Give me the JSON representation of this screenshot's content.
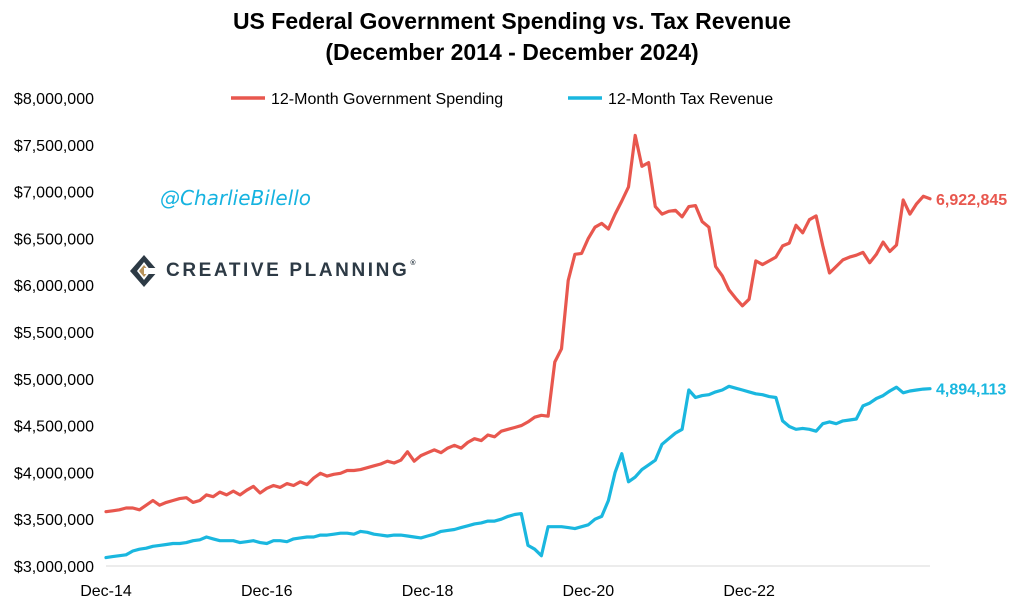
{
  "chart_data": {
    "type": "line",
    "title": "US Federal Government Spending vs. Tax Revenue",
    "subtitle": "(December 2014 - December 2024)",
    "xlabel": "",
    "ylabel": "",
    "x_start": "Dec-14",
    "x_end": "Dec-24",
    "x_ticks": [
      "Dec-14",
      "Dec-16",
      "Dec-18",
      "Dec-20",
      "Dec-22"
    ],
    "y_ticks": [
      "$3,000,000",
      "$3,500,000",
      "$4,000,000",
      "$4,500,000",
      "$5,000,000",
      "$5,500,000",
      "$6,000,000",
      "$6,500,000",
      "$7,000,000",
      "$7,500,000",
      "$8,000,000"
    ],
    "ylim": [
      3000000,
      8000000
    ],
    "grid": false,
    "legend_position": "top",
    "x_unit": "monthly",
    "series": [
      {
        "name": "12-Month Government Spending",
        "color": "#e8574e",
        "end_label": "6,922,845",
        "values": [
          3580000,
          3590000,
          3600000,
          3620000,
          3620000,
          3600000,
          3650000,
          3700000,
          3650000,
          3680000,
          3700000,
          3720000,
          3730000,
          3680000,
          3700000,
          3760000,
          3740000,
          3790000,
          3760000,
          3800000,
          3760000,
          3810000,
          3850000,
          3780000,
          3830000,
          3860000,
          3840000,
          3880000,
          3860000,
          3900000,
          3870000,
          3940000,
          3990000,
          3960000,
          3980000,
          3990000,
          4020000,
          4020000,
          4030000,
          4050000,
          4070000,
          4090000,
          4120000,
          4100000,
          4130000,
          4220000,
          4120000,
          4180000,
          4210000,
          4240000,
          4210000,
          4260000,
          4290000,
          4260000,
          4320000,
          4360000,
          4340000,
          4400000,
          4380000,
          4440000,
          4460000,
          4480000,
          4500000,
          4540000,
          4590000,
          4610000,
          4600000,
          5180000,
          5320000,
          6050000,
          6330000,
          6340000,
          6500000,
          6620000,
          6660000,
          6600000,
          6760000,
          6900000,
          7050000,
          7600000,
          7270000,
          7310000,
          6840000,
          6760000,
          6790000,
          6800000,
          6730000,
          6840000,
          6850000,
          6680000,
          6620000,
          6200000,
          6100000,
          5950000,
          5860000,
          5780000,
          5850000,
          6260000,
          6220000,
          6260000,
          6300000,
          6420000,
          6450000,
          6640000,
          6560000,
          6700000,
          6740000,
          6420000,
          6130000,
          6200000,
          6270000,
          6300000,
          6320000,
          6350000,
          6240000,
          6330000,
          6460000,
          6360000,
          6430000,
          6910000,
          6760000,
          6870000,
          6950000,
          6922845
        ]
      },
      {
        "name": "12-Month Tax Revenue",
        "color": "#1ab7df",
        "end_label": "4,894,113",
        "values": [
          3090000,
          3100000,
          3110000,
          3120000,
          3160000,
          3180000,
          3190000,
          3210000,
          3220000,
          3230000,
          3240000,
          3240000,
          3250000,
          3270000,
          3280000,
          3310000,
          3290000,
          3270000,
          3270000,
          3270000,
          3250000,
          3260000,
          3270000,
          3250000,
          3240000,
          3270000,
          3270000,
          3260000,
          3290000,
          3300000,
          3310000,
          3310000,
          3330000,
          3330000,
          3340000,
          3350000,
          3350000,
          3340000,
          3370000,
          3360000,
          3340000,
          3330000,
          3320000,
          3330000,
          3330000,
          3320000,
          3310000,
          3300000,
          3320000,
          3340000,
          3370000,
          3380000,
          3390000,
          3410000,
          3430000,
          3450000,
          3460000,
          3480000,
          3480000,
          3500000,
          3530000,
          3550000,
          3560000,
          3220000,
          3180000,
          3110000,
          3420000,
          3420000,
          3420000,
          3410000,
          3400000,
          3420000,
          3440000,
          3500000,
          3530000,
          3700000,
          4000000,
          4200000,
          3900000,
          3950000,
          4030000,
          4080000,
          4130000,
          4300000,
          4360000,
          4420000,
          4460000,
          4880000,
          4800000,
          4820000,
          4830000,
          4860000,
          4880000,
          4920000,
          4900000,
          4880000,
          4860000,
          4840000,
          4830000,
          4810000,
          4800000,
          4550000,
          4490000,
          4460000,
          4470000,
          4460000,
          4440000,
          4520000,
          4540000,
          4520000,
          4550000,
          4560000,
          4570000,
          4710000,
          4740000,
          4790000,
          4820000,
          4870000,
          4910000,
          4850000,
          4870000,
          4880000,
          4890000,
          4894113
        ]
      }
    ]
  },
  "watermark": {
    "handle": "@CharlieBilello",
    "logo_text": "CREATIVE PLANNING",
    "logo_tm": "®"
  }
}
